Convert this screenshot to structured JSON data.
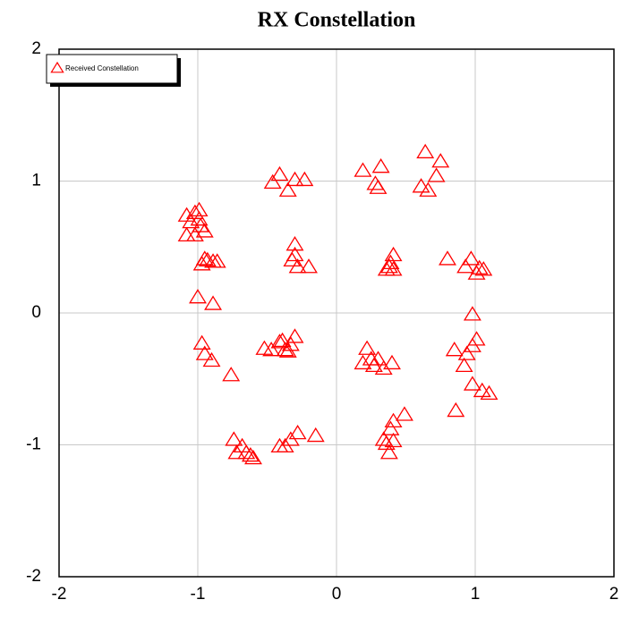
{
  "chart_data": {
    "type": "scatter",
    "title": "RX Constellation",
    "xlim": [
      -2,
      2
    ],
    "ylim": [
      -2,
      2
    ],
    "xticks": [
      -2,
      -1,
      0,
      1,
      2
    ],
    "yticks": [
      -2,
      -1,
      0,
      1,
      2
    ],
    "grid": true,
    "legend": "upper left",
    "series": [
      {
        "name": "Received Constellation",
        "color": "#ff0000",
        "marker": "triangle",
        "x": [
          -0.41,
          -0.46,
          -0.35,
          -0.3,
          -0.23,
          0.19,
          0.32,
          0.28,
          0.3,
          0.64,
          0.75,
          0.61,
          0.66,
          0.72,
          -1.08,
          -1.02,
          -0.99,
          -1.05,
          -0.98,
          -1.08,
          -1.02,
          -0.95,
          -0.99,
          -0.97,
          -0.93,
          -0.89,
          -0.95,
          -0.86,
          -0.3,
          -0.32,
          -0.28,
          -0.2,
          -0.3,
          0.41,
          0.38,
          0.41,
          0.36,
          0.39,
          0.8,
          0.93,
          0.97,
          1.01,
          1.06,
          1.03,
          -1.0,
          -0.89,
          0.98,
          -0.97,
          -0.95,
          -0.9,
          -0.76,
          -0.52,
          -0.47,
          -0.41,
          -0.37,
          -0.35,
          -0.33,
          -0.3,
          -0.39,
          0.22,
          0.19,
          0.25,
          0.27,
          0.34,
          0.4,
          0.3,
          0.85,
          0.94,
          0.92,
          0.98,
          1.01,
          0.98,
          1.05,
          1.1,
          0.86,
          0.41,
          0.39,
          0.49,
          0.34,
          0.41,
          0.36,
          0.38,
          -0.41,
          -0.37,
          -0.33,
          -0.28,
          -0.15,
          -0.74,
          -0.68,
          -0.65,
          -0.72,
          -0.62,
          -0.6
        ],
        "values": [
          1.05,
          0.99,
          0.93,
          1.01,
          1.01,
          1.08,
          1.11,
          0.98,
          0.95,
          1.22,
          1.15,
          0.96,
          0.93,
          1.04,
          0.74,
          0.76,
          0.78,
          0.69,
          0.66,
          0.59,
          0.59,
          0.62,
          0.71,
          0.37,
          0.4,
          0.39,
          0.41,
          0.39,
          0.52,
          0.4,
          0.35,
          0.35,
          0.44,
          0.44,
          0.35,
          0.33,
          0.33,
          0.38,
          0.41,
          0.35,
          0.41,
          0.3,
          0.33,
          0.34,
          0.12,
          0.07,
          -0.01,
          -0.23,
          -0.31,
          -0.36,
          -0.47,
          -0.27,
          -0.28,
          -0.22,
          -0.28,
          -0.29,
          -0.24,
          -0.18,
          -0.21,
          -0.27,
          -0.38,
          -0.35,
          -0.4,
          -0.42,
          -0.38,
          -0.35,
          -0.28,
          -0.31,
          -0.4,
          -0.25,
          -0.2,
          -0.54,
          -0.59,
          -0.61,
          -0.74,
          -0.82,
          -0.88,
          -0.77,
          -0.96,
          -0.97,
          -0.99,
          -1.06,
          -1.01,
          -1.01,
          -0.96,
          -0.91,
          -0.93,
          -0.96,
          -1.01,
          -1.06,
          -1.06,
          -1.08,
          -1.1
        ]
      }
    ]
  }
}
